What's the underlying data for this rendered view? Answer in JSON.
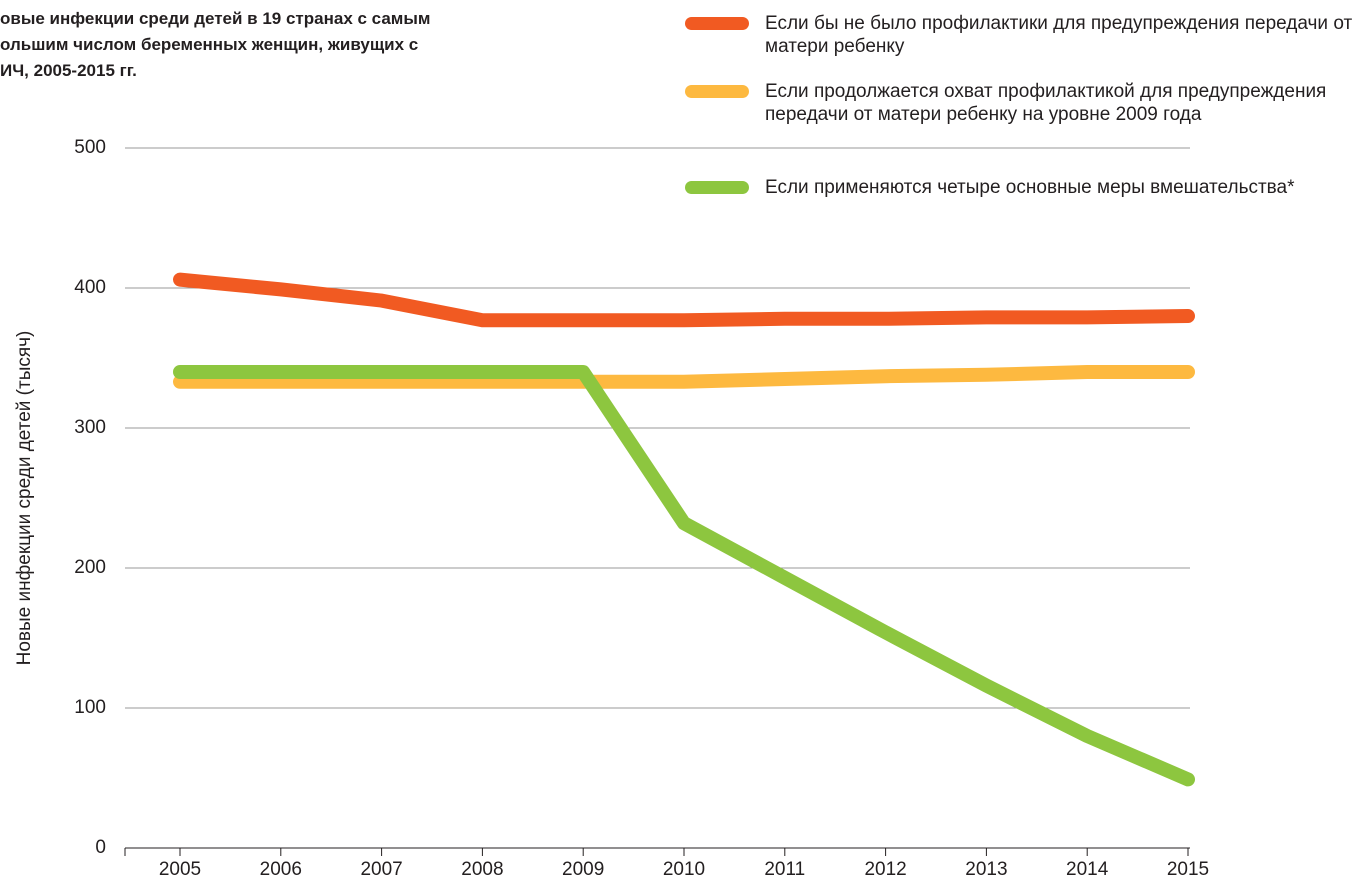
{
  "chart_data": {
    "type": "line",
    "title": [
      "овые инфекции среди детей в 19 странах с самым",
      "ольшим числом беременных женщин, живущих с",
      "ИЧ, 2005-2015 гг."
    ],
    "y_label": "Новые инфекции среди детей (тысяч)",
    "categories": [
      "2005",
      "2006",
      "2007",
      "2008",
      "2009",
      "2010",
      "2011",
      "2012",
      "2013",
      "2014",
      "2015"
    ],
    "series": [
      {
        "name": "Если бы не было профилактики для предупреждения передачи от матери ребенку",
        "color": "#f15a22",
        "values": [
          406,
          399,
          391,
          377,
          377,
          377,
          378,
          378,
          379,
          379,
          380
        ]
      },
      {
        "name": "Если продолжается охват профилактикой для предупреждения передачи от матери ребенку на уровне 2009 года",
        "color": "#fdb940",
        "values": [
          333,
          333,
          333,
          333,
          333,
          333,
          335,
          337,
          338,
          340,
          340
        ]
      },
      {
        "name": "Если применяются четыре основные меры вмешательства*",
        "color": "#8dc63f",
        "values": [
          340,
          340,
          340,
          340,
          340,
          232,
          193,
          154,
          116,
          80,
          49
        ]
      }
    ],
    "ylim": [
      0,
      500
    ],
    "yticks": [
      0,
      100,
      200,
      300,
      400,
      500
    ],
    "grid": true
  }
}
